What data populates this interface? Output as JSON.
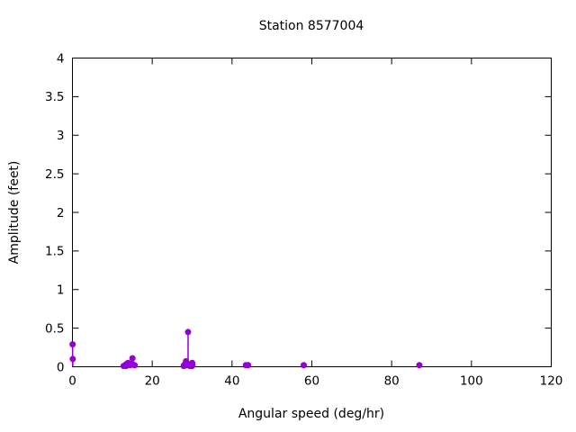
{
  "window": {
    "background": "#ffffff"
  },
  "chart_data": {
    "type": "scatter",
    "style": "impulses-with-points",
    "title": "Station 8577004",
    "xlabel": "Angular speed (deg/hr)",
    "ylabel": "Amplitude (feet)",
    "xlim": [
      0,
      120
    ],
    "ylim": [
      0,
      4
    ],
    "xticks": [
      0,
      20,
      40,
      60,
      80,
      100,
      120
    ],
    "yticks": [
      0,
      0.5,
      1,
      1.5,
      2,
      2.5,
      3,
      3.5,
      4
    ],
    "grid": false,
    "legend_position": "none",
    "frame_color": "#000000",
    "point_color": "#9400d3",
    "point_radius_px": 3.5,
    "points": [
      {
        "x": 0.04,
        "y": 0.29
      },
      {
        "x": 0.08,
        "y": 0.1
      },
      {
        "x": 12.85,
        "y": 0.01
      },
      {
        "x": 13.4,
        "y": 0.03
      },
      {
        "x": 13.47,
        "y": 0.01
      },
      {
        "x": 13.94,
        "y": 0.05
      },
      {
        "x": 14.49,
        "y": 0.02
      },
      {
        "x": 14.92,
        "y": 0.04
      },
      {
        "x": 15.04,
        "y": 0.11
      },
      {
        "x": 15.58,
        "y": 0.02
      },
      {
        "x": 27.9,
        "y": 0.01
      },
      {
        "x": 27.97,
        "y": 0.02
      },
      {
        "x": 28.44,
        "y": 0.07
      },
      {
        "x": 28.51,
        "y": 0.02
      },
      {
        "x": 28.98,
        "y": 0.45
      },
      {
        "x": 29.46,
        "y": 0.01
      },
      {
        "x": 29.53,
        "y": 0.03
      },
      {
        "x": 29.96,
        "y": 0.01
      },
      {
        "x": 30.0,
        "y": 0.05
      },
      {
        "x": 30.08,
        "y": 0.02
      },
      {
        "x": 43.48,
        "y": 0.02
      },
      {
        "x": 44.03,
        "y": 0.02
      },
      {
        "x": 57.97,
        "y": 0.02
      },
      {
        "x": 86.95,
        "y": 0.02
      }
    ]
  }
}
